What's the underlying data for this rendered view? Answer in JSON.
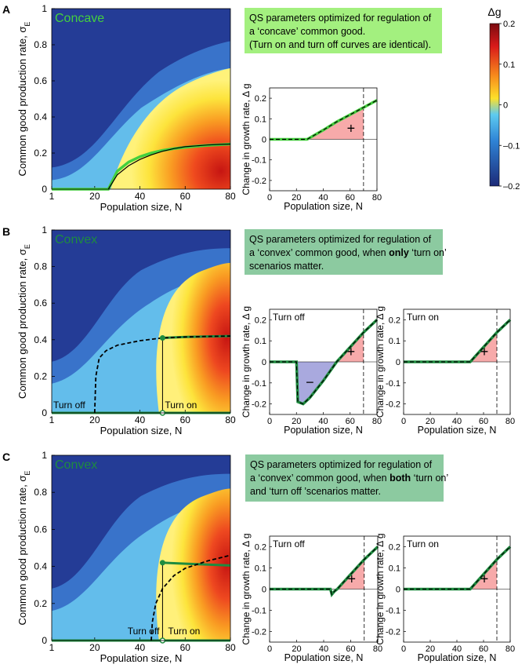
{
  "colors": {
    "note_a": "#a3f07f",
    "note_bc": "#8ccaa0",
    "green_a": "#44d03e",
    "green_bc": "#1e8c3f",
    "pos_fill": "#f7aaaa",
    "neg_fill": "#a9a9de"
  },
  "panels": [
    {
      "letter": "A",
      "map_label": "Concave",
      "note_lines": [
        {
          "text": "QS parameters optimized for regulation of"
        },
        {
          "text": "a ‘concave’ common good."
        },
        {
          "text": "(Turn on and turn off curves are identical)."
        }
      ],
      "map_annotations": [],
      "insets": [
        {
          "label": "",
          "plus": "+",
          "minus": ""
        }
      ]
    },
    {
      "letter": "B",
      "map_label": "Convex",
      "note_lines": [
        {
          "text": "QS parameters optimized for regulation of"
        },
        {
          "pre": "a ‘convex’ common good, when ",
          "bold": "only",
          "post": " ‘turn on’"
        },
        {
          "text": "scenarios matter."
        }
      ],
      "map_annotations": [
        "Turn off",
        "Turn on"
      ],
      "insets": [
        {
          "label": "Turn off",
          "plus": "+",
          "minus": "−"
        },
        {
          "label": "Turn on",
          "plus": "+",
          "minus": ""
        }
      ]
    },
    {
      "letter": "C",
      "map_label": "Convex",
      "note_lines": [
        {
          "text": "QS parameters optimized for regulation of"
        },
        {
          "pre": " a ‘convex’ common good, when ",
          "bold": "both",
          "post": " ‘turn on’"
        },
        {
          "text": "and ‘turn off ’scenarios matter."
        }
      ],
      "map_annotations": [
        "Turn off",
        "Turn on"
      ],
      "insets": [
        {
          "label": "Turn off",
          "plus": "+",
          "minus": ""
        },
        {
          "label": "Turn on",
          "plus": "+",
          "minus": ""
        }
      ]
    }
  ],
  "chart_data": [
    {
      "type": "heatmap",
      "panel": "A",
      "title": "Concave",
      "xlabel": "Population size, N",
      "ylabel": "Common good production rate,  σ",
      "ylabel_subscript": "E",
      "xlim": [
        1,
        80
      ],
      "ylim": [
        0,
        1
      ],
      "xticks": [
        1,
        20,
        40,
        60,
        80
      ],
      "yticks": [
        0,
        0.2,
        0.4,
        0.6,
        0.8,
        1
      ],
      "optimum_curve": {
        "x": [
          26,
          30,
          35,
          40,
          45,
          50,
          55,
          60,
          65,
          70,
          75,
          80
        ],
        "y": [
          0,
          0.08,
          0.13,
          0.165,
          0.19,
          0.21,
          0.225,
          0.235,
          0.24,
          0.245,
          0.248,
          0.25
        ]
      },
      "green_curve": {
        "x": [
          1,
          26,
          30,
          35,
          40,
          45,
          50,
          55,
          60,
          65,
          70,
          75,
          80
        ],
        "y": [
          0,
          0,
          0.1,
          0.15,
          0.18,
          0.2,
          0.215,
          0.225,
          0.232,
          0.238,
          0.243,
          0.246,
          0.25
        ]
      }
    },
    {
      "type": "line",
      "panel": "A",
      "title": "",
      "xlabel": "Population size, N",
      "ylabel": "Change in growth rate, Δ g",
      "xlim": [
        0,
        80
      ],
      "ylim": [
        -0.25,
        0.25
      ],
      "xticks": [
        0,
        20,
        40,
        60,
        80
      ],
      "yticks": [
        -0.2,
        -0.1,
        0,
        0.1,
        0.2
      ],
      "vline_x": 70,
      "series": [
        {
          "name": "growth",
          "x": [
            0,
            28,
            40,
            50,
            60,
            70,
            80
          ],
          "y": [
            0,
            0,
            0.045,
            0.085,
            0.12,
            0.155,
            0.19
          ]
        }
      ]
    },
    {
      "type": "heatmap",
      "panel": "B",
      "title": "Convex",
      "xlabel": "Population size, N",
      "ylabel": "Common good production rate,  σ",
      "ylabel_subscript": "E",
      "xlim": [
        1,
        80
      ],
      "ylim": [
        0,
        1
      ],
      "xticks": [
        1,
        20,
        40,
        60,
        80
      ],
      "yticks": [
        0,
        0.2,
        0.4,
        0.6,
        0.8,
        1
      ],
      "optimum_curve": {
        "x": [
          20,
          20.5,
          22,
          25,
          30,
          40,
          50,
          60,
          70,
          80
        ],
        "y": [
          0,
          0.2,
          0.3,
          0.34,
          0.37,
          0.395,
          0.41,
          0.415,
          0.418,
          0.42
        ]
      },
      "green_curve": {
        "x": [
          50,
          60,
          70,
          80
        ],
        "y": [
          0.41,
          0.415,
          0.418,
          0.42
        ]
      },
      "green_baseline": {
        "x": [
          1,
          80
        ],
        "y": [
          0,
          0
        ]
      },
      "jump": {
        "x": 50,
        "y": [
          0,
          0.41
        ]
      }
    },
    {
      "type": "line",
      "panel": "B",
      "title": "Turn off",
      "xlabel": "Population size, N",
      "ylabel": "Change in growth rate, Δ g",
      "xlim": [
        0,
        80
      ],
      "ylim": [
        -0.25,
        0.25
      ],
      "xticks": [
        0,
        20,
        40,
        60,
        80
      ],
      "yticks": [
        -0.2,
        -0.1,
        0,
        0.1,
        0.2
      ],
      "vline_x": 70,
      "series": [
        {
          "name": "growth",
          "x": [
            0,
            20,
            21,
            25,
            30,
            40,
            50,
            60,
            70,
            80
          ],
          "y": [
            0,
            0,
            -0.19,
            -0.2,
            -0.17,
            -0.09,
            0,
            0.07,
            0.14,
            0.2
          ]
        }
      ]
    },
    {
      "type": "line",
      "panel": "B",
      "title": "Turn on",
      "xlabel": "Population size, N",
      "ylabel": "Change in growth rate, Δ g",
      "xlim": [
        0,
        80
      ],
      "ylim": [
        -0.25,
        0.25
      ],
      "xticks": [
        0,
        20,
        40,
        60,
        80
      ],
      "yticks": [
        -0.2,
        -0.1,
        0,
        0.1,
        0.2
      ],
      "vline_x": 70,
      "series": [
        {
          "name": "growth",
          "x": [
            0,
            50,
            60,
            70,
            80
          ],
          "y": [
            0,
            0,
            0.07,
            0.14,
            0.2
          ]
        }
      ]
    },
    {
      "type": "heatmap",
      "panel": "C",
      "title": "Convex",
      "xlabel": "Population size, N",
      "ylabel": "Common good production rate,  σ",
      "ylabel_subscript": "E",
      "xlim": [
        1,
        80
      ],
      "ylim": [
        0,
        1
      ],
      "xticks": [
        1,
        20,
        40,
        60,
        80
      ],
      "yticks": [
        0,
        0.2,
        0.4,
        0.6,
        0.8,
        1
      ],
      "optimum_curve": {
        "x": [
          45,
          45.5,
          47,
          50,
          55,
          60,
          70,
          80
        ],
        "y": [
          0,
          0.1,
          0.2,
          0.28,
          0.35,
          0.39,
          0.43,
          0.46
        ]
      },
      "green_curve": {
        "x": [
          50,
          60,
          70,
          80
        ],
        "y": [
          0.42,
          0.415,
          0.41,
          0.405
        ]
      },
      "green_baseline": {
        "x": [
          1,
          80
        ],
        "y": [
          0,
          0
        ]
      },
      "jump": {
        "x": 50,
        "y": [
          0,
          0.42
        ]
      }
    },
    {
      "type": "line",
      "panel": "C",
      "title": "Turn off",
      "xlabel": "Population size, N",
      "ylabel": "Change in growth rate, Δ g",
      "xlim": [
        0,
        80
      ],
      "ylim": [
        -0.25,
        0.25
      ],
      "xticks": [
        0,
        20,
        40,
        60,
        80
      ],
      "yticks": [
        -0.2,
        -0.1,
        0,
        0.1,
        0.2
      ],
      "vline_x": 70,
      "series": [
        {
          "name": "growth",
          "x": [
            0,
            45,
            46,
            48,
            50,
            60,
            70,
            80
          ],
          "y": [
            0,
            0,
            -0.025,
            -0.01,
            0,
            0.07,
            0.14,
            0.2
          ]
        }
      ]
    },
    {
      "type": "line",
      "panel": "C",
      "title": "Turn on",
      "xlabel": "Population size, N",
      "ylabel": "Change in growth rate, Δ g",
      "xlim": [
        0,
        80
      ],
      "ylim": [
        -0.25,
        0.25
      ],
      "xticks": [
        0,
        20,
        40,
        60,
        80
      ],
      "yticks": [
        -0.2,
        -0.1,
        0,
        0.1,
        0.2
      ],
      "vline_x": 70,
      "series": [
        {
          "name": "growth",
          "x": [
            0,
            50,
            60,
            70,
            80
          ],
          "y": [
            0,
            0,
            0.07,
            0.14,
            0.2
          ]
        }
      ]
    },
    {
      "type": "colorbar",
      "title": "Δg",
      "lim": [
        -0.2,
        0.2
      ],
      "ticks": [
        0.2,
        0.1,
        0,
        -0.1,
        -0.2
      ],
      "tick_labels": [
        "0.2",
        "0.1",
        "0",
        "–0.1",
        "–0.2"
      ]
    }
  ]
}
